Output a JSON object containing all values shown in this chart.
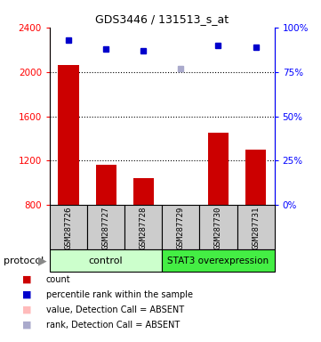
{
  "title": "GDS3446 / 131513_s_at",
  "samples": [
    "GSM287726",
    "GSM287727",
    "GSM287728",
    "GSM287729",
    "GSM287730",
    "GSM287731"
  ],
  "bar_values": [
    2060,
    1165,
    1040,
    760,
    1450,
    1300
  ],
  "bar_color": "#cc0000",
  "bar_absent_color": "#ffaaaa",
  "bar_absent_index": 3,
  "percentile_pct": [
    93,
    88,
    87,
    null,
    90,
    89
  ],
  "percentile_absent_pct": [
    null,
    null,
    null,
    77,
    null,
    null
  ],
  "percentile_color": "#0000cc",
  "percentile_absent_color": "#aaaacc",
  "ylim_left": [
    800,
    2400
  ],
  "ylim_right": [
    0,
    100
  ],
  "yticks_left": [
    800,
    1200,
    1600,
    2000,
    2400
  ],
  "yticks_right": [
    0,
    25,
    50,
    75,
    100
  ],
  "hlines": [
    2000,
    1600,
    1200
  ],
  "control_color": "#ccffcc",
  "stat3_color": "#44ee44",
  "sample_box_color": "#cccccc",
  "legend_items": [
    {
      "color": "#cc0000",
      "label": "count"
    },
    {
      "color": "#0000cc",
      "label": "percentile rank within the sample"
    },
    {
      "color": "#ffbbbb",
      "label": "value, Detection Call = ABSENT"
    },
    {
      "color": "#aaaacc",
      "label": "rank, Detection Call = ABSENT"
    }
  ]
}
